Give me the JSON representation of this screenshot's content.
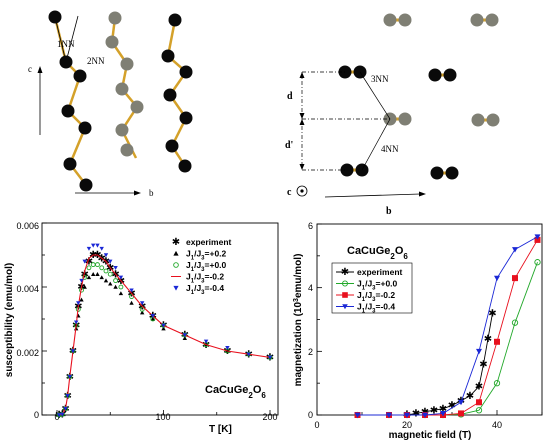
{
  "colors": {
    "bond": "#d4a12a",
    "atom_dark": "#0a0a0a",
    "atom_gray": "#7f7f74",
    "experiment": "#000000",
    "red": "#e8101e",
    "green": "#22a82a",
    "blue": "#1b28d6"
  },
  "top_left": {
    "axis_c": "c",
    "axis_b": "b",
    "label_1nn": "1NN",
    "label_2nn": "2NN"
  },
  "top_right": {
    "label_3nn": "3NN",
    "label_4nn": "4NN",
    "label_d": "d",
    "label_dprime": "d'",
    "axis_c": "c",
    "axis_b": "b"
  },
  "chart_data": [
    {
      "type": "scatter",
      "xlabel": "T [K]",
      "ylabel": "susceptibility (emu/mol)",
      "annotation": "CaCuGe2O6",
      "xlim": [
        0,
        200
      ],
      "ylim": [
        0,
        0.006
      ],
      "x_ticks": [
        "0",
        "100",
        "200"
      ],
      "y_ticks": [
        "0",
        "0.002",
        "0.004",
        "0.006"
      ],
      "legend_position": "top-right",
      "series": [
        {
          "name": "experiment",
          "marker": "star",
          "color": "#000000",
          "x": [
            2,
            5,
            8,
            10,
            12,
            15,
            18,
            20,
            23,
            26,
            30,
            34,
            38,
            42,
            46,
            50,
            55,
            60,
            70,
            80,
            90,
            100,
            120,
            140,
            160,
            180,
            200
          ],
          "y": [
            0,
            2e-05,
            0.0002,
            0.0006,
            0.0012,
            0.002,
            0.0028,
            0.0034,
            0.004,
            0.0044,
            0.0048,
            0.005,
            0.005,
            0.0049,
            0.0048,
            0.0046,
            0.0044,
            0.0042,
            0.0038,
            0.0034,
            0.0031,
            0.0028,
            0.0025,
            0.0022,
            0.002,
            0.0019,
            0.0018
          ]
        },
        {
          "name": "J1/J3=+0.2",
          "marker": "tri-up",
          "color": "#000000",
          "x": [
            2,
            5,
            8,
            10,
            12,
            15,
            18,
            20,
            23,
            26,
            30,
            34,
            38,
            42,
            46,
            50,
            55,
            60,
            70,
            80,
            90,
            100,
            120,
            140,
            160,
            180,
            200
          ],
          "y": [
            0,
            2e-05,
            0.0002,
            0.0006,
            0.0012,
            0.002,
            0.0027,
            0.0031,
            0.0036,
            0.004,
            0.0043,
            0.0044,
            0.0044,
            0.0043,
            0.0042,
            0.0041,
            0.004,
            0.0038,
            0.0035,
            0.0032,
            0.003,
            0.0027,
            0.0024,
            0.0022,
            0.002,
            0.0019,
            0.0018
          ]
        },
        {
          "name": "J1/J3=+0.0",
          "marker": "circle-open",
          "color": "#22a82a",
          "x": [
            2,
            5,
            8,
            10,
            12,
            15,
            18,
            20,
            23,
            26,
            30,
            34,
            38,
            42,
            46,
            50,
            55,
            60,
            70,
            80,
            90,
            100,
            120,
            140,
            160,
            180,
            200
          ],
          "y": [
            0,
            2e-05,
            0.0002,
            0.0006,
            0.0012,
            0.002,
            0.0028,
            0.0033,
            0.0039,
            0.0043,
            0.0046,
            0.0047,
            0.0047,
            0.0046,
            0.0045,
            0.0044,
            0.0042,
            0.004,
            0.0037,
            0.0033,
            0.003,
            0.0028,
            0.0025,
            0.0022,
            0.002,
            0.0019,
            0.0018
          ]
        },
        {
          "name": "J1/J3=-0.2",
          "marker": "line",
          "color": "#e8101e",
          "x": [
            2,
            5,
            8,
            10,
            12,
            15,
            18,
            20,
            23,
            26,
            30,
            34,
            38,
            42,
            46,
            50,
            55,
            60,
            70,
            80,
            90,
            100,
            120,
            140,
            160,
            180,
            200
          ],
          "y": [
            0,
            2e-05,
            0.0002,
            0.0006,
            0.0012,
            0.002,
            0.0028,
            0.0034,
            0.004,
            0.0045,
            0.0049,
            0.005,
            0.005,
            0.0049,
            0.0048,
            0.0046,
            0.0044,
            0.0042,
            0.0038,
            0.0034,
            0.0031,
            0.0028,
            0.0025,
            0.0022,
            0.002,
            0.0019,
            0.0018
          ]
        },
        {
          "name": "J1/J3=-0.4",
          "marker": "tri-down",
          "color": "#1b28d6",
          "x": [
            2,
            5,
            8,
            10,
            12,
            15,
            18,
            20,
            23,
            26,
            30,
            34,
            38,
            42,
            46,
            50,
            55,
            60,
            70,
            80,
            90,
            100,
            120,
            140,
            160,
            180,
            200
          ],
          "y": [
            0,
            2e-05,
            0.0002,
            0.0006,
            0.0012,
            0.002,
            0.0029,
            0.0035,
            0.0042,
            0.0048,
            0.0052,
            0.0053,
            0.0053,
            0.0052,
            0.005,
            0.0048,
            0.0046,
            0.0043,
            0.0039,
            0.0035,
            0.0031,
            0.0028,
            0.0025,
            0.0023,
            0.0021,
            0.0019,
            0.0018
          ]
        }
      ]
    },
    {
      "type": "line",
      "xlabel": "magnetic field (T)",
      "ylabel": "magnetization (10^3emu/mol)",
      "annotation": "CaCuGe2O6",
      "xlim": [
        0,
        50
      ],
      "ylim": [
        0,
        6
      ],
      "x_ticks": [
        "0",
        "20",
        "40"
      ],
      "y_ticks": [
        "0",
        "2",
        "4",
        "6"
      ],
      "legend_position": "upper-left",
      "series": [
        {
          "name": "experiment",
          "marker": "star",
          "color": "#000000",
          "x": [
            20,
            22,
            24,
            26,
            28,
            30,
            32,
            34,
            36,
            37,
            38,
            39
          ],
          "y": [
            0,
            0.05,
            0.1,
            0.15,
            0.2,
            0.3,
            0.45,
            0.6,
            0.9,
            1.6,
            2.4,
            3.2
          ]
        },
        {
          "name": "J1/J3=+0.0",
          "marker": "circle-open",
          "color": "#22a82a",
          "x": [
            9,
            16,
            20,
            24,
            28,
            32,
            36,
            40,
            44,
            49
          ],
          "y": [
            0,
            0,
            0,
            0,
            0,
            0.02,
            0.15,
            1.0,
            2.9,
            4.8
          ]
        },
        {
          "name": "J1/J3=-0.2",
          "marker": "square",
          "color": "#e8101e",
          "x": [
            9,
            16,
            20,
            24,
            28,
            32,
            36,
            40,
            44,
            49
          ],
          "y": [
            0,
            0,
            0,
            0,
            0,
            0.05,
            0.4,
            2.3,
            4.3,
            5.5
          ]
        },
        {
          "name": "J1/J3=-0.4",
          "marker": "tri-down",
          "color": "#1b28d6",
          "x": [
            9,
            16,
            20,
            24,
            28,
            32,
            36,
            40,
            44,
            49
          ],
          "y": [
            0,
            0,
            0,
            0,
            0.05,
            0.4,
            2.0,
            4.3,
            5.2,
            5.6
          ]
        }
      ]
    }
  ]
}
